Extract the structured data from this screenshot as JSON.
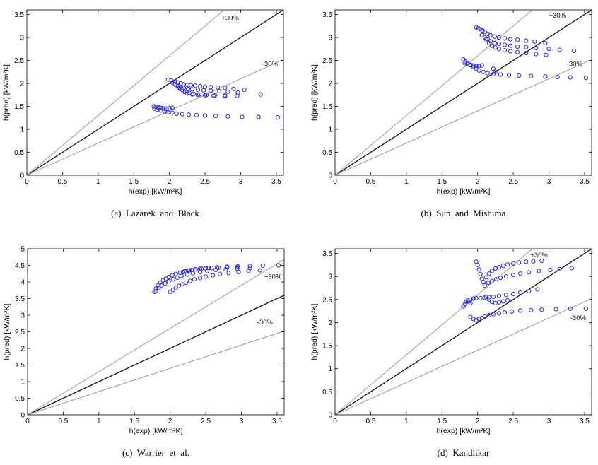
{
  "chart_data": [
    {
      "type": "scatter",
      "caption": "(a)  Lazarek  and  Black",
      "xlabel": "h(exp) [kW/m²K]",
      "ylabel": "h(pred) [kW/m²K]",
      "xlim": [
        0,
        3.6
      ],
      "ylim": [
        0,
        3.6
      ],
      "xticks": [
        0,
        0.5,
        1,
        1.5,
        2,
        2.5,
        3,
        3.5
      ],
      "yticks": [
        0,
        0.5,
        1,
        1.5,
        2,
        2.5,
        3,
        3.5
      ],
      "grid": false,
      "marker_color": "#2a2ad8",
      "annotations": [
        "+30%",
        "-30%"
      ],
      "reference_lines": [
        {
          "slope": 1.0
        },
        {
          "slope": 1.3
        },
        {
          "slope": 0.7
        }
      ],
      "series": [
        {
          "x": [
            1.98,
            2.03,
            2.08,
            2.12,
            2.16,
            2.2,
            2.25,
            2.3,
            2.36,
            2.43,
            2.5,
            2.58,
            2.68,
            2.78,
            2.9,
            3.05,
            3.28
          ],
          "y": [
            2.08,
            2.06,
            2.04,
            2.02,
            2.0,
            1.98,
            1.97,
            1.96,
            1.95,
            1.94,
            1.93,
            1.92,
            1.91,
            1.9,
            1.88,
            1.86,
            1.76
          ]
        },
        {
          "x": [
            2.04,
            2.08,
            2.12,
            2.16,
            2.2,
            2.26,
            2.32,
            2.4,
            2.48,
            2.58,
            2.7,
            2.82,
            2.96
          ],
          "y": [
            2.02,
            1.98,
            1.95,
            1.92,
            1.9,
            1.88,
            1.87,
            1.86,
            1.85,
            1.84,
            1.83,
            1.82,
            1.8
          ]
        },
        {
          "x": [
            2.1,
            2.14,
            2.18,
            2.22,
            2.28,
            2.34,
            2.42,
            2.52,
            2.64,
            2.78,
            2.95
          ],
          "y": [
            1.96,
            1.91,
            1.86,
            1.82,
            1.79,
            1.77,
            1.76,
            1.75,
            1.74,
            1.74,
            1.73
          ]
        },
        {
          "x": [
            2.15,
            2.2,
            2.25,
            2.32,
            2.4,
            2.5,
            2.62,
            2.78
          ],
          "y": [
            1.88,
            1.82,
            1.78,
            1.76,
            1.75,
            1.74,
            1.73,
            1.72
          ]
        },
        {
          "x": [
            1.78,
            1.81,
            1.84,
            1.87,
            1.9,
            1.93,
            1.96,
            2.0,
            2.04
          ],
          "y": [
            1.5,
            1.49,
            1.48,
            1.47,
            1.46,
            1.45,
            1.45,
            1.46,
            1.47
          ]
        },
        {
          "x": [
            1.79,
            1.83,
            1.88,
            1.93,
            1.98,
            2.04,
            2.1,
            2.18,
            2.27,
            2.38,
            2.5,
            2.65,
            2.82,
            3.02,
            3.25,
            3.52
          ],
          "y": [
            1.45,
            1.43,
            1.41,
            1.39,
            1.37,
            1.36,
            1.34,
            1.33,
            1.32,
            1.31,
            1.3,
            1.29,
            1.28,
            1.27,
            1.27,
            1.26
          ]
        }
      ]
    },
    {
      "type": "scatter",
      "caption": "(b)  Sun  and  Mishima",
      "xlabel": "h(exp) [kW/m²K]",
      "ylabel": "h(pred) [kW/m²K]",
      "xlim": [
        0,
        3.6
      ],
      "ylim": [
        0,
        3.6
      ],
      "xticks": [
        0,
        0.5,
        1,
        1.5,
        2,
        2.5,
        3,
        3.5
      ],
      "yticks": [
        0,
        0.5,
        1,
        1.5,
        2,
        2.5,
        3,
        3.5
      ],
      "grid": false,
      "marker_color": "#2a2ad8",
      "annotations": [
        "+30%",
        "-30%"
      ],
      "reference_lines": [
        {
          "slope": 1.0
        },
        {
          "slope": 1.3
        },
        {
          "slope": 0.7
        }
      ],
      "series": [
        {
          "x": [
            1.98,
            2.01,
            2.04,
            2.07,
            2.1,
            2.14,
            2.18,
            2.24,
            2.3,
            2.38,
            2.46,
            2.56,
            2.68,
            2.8,
            2.95
          ],
          "y": [
            3.22,
            3.2,
            3.18,
            3.15,
            3.12,
            3.08,
            3.05,
            3.02,
            3.0,
            2.98,
            2.96,
            2.95,
            2.93,
            2.91,
            2.88
          ]
        },
        {
          "x": [
            2.06,
            2.1,
            2.14,
            2.18,
            2.24,
            2.3,
            2.38,
            2.46,
            2.56,
            2.68,
            2.82,
            3.0,
            3.15,
            3.35
          ],
          "y": [
            3.05,
            3.0,
            2.96,
            2.92,
            2.88,
            2.86,
            2.84,
            2.82,
            2.8,
            2.79,
            2.77,
            2.75,
            2.73,
            2.71
          ]
        },
        {
          "x": [
            2.12,
            2.16,
            2.2,
            2.25,
            2.3,
            2.38,
            2.46,
            2.56,
            2.68,
            2.82,
            2.96
          ],
          "y": [
            2.96,
            2.88,
            2.82,
            2.78,
            2.75,
            2.72,
            2.7,
            2.68,
            2.66,
            2.64,
            2.62
          ]
        },
        {
          "x": [
            1.8,
            1.83,
            1.86,
            1.9,
            1.94,
            1.98,
            2.02,
            2.08,
            2.14,
            2.22,
            2.32,
            2.44,
            2.58,
            2.75,
            2.95,
            3.12,
            3.3,
            3.52
          ],
          "y": [
            2.52,
            2.48,
            2.44,
            2.4,
            2.36,
            2.32,
            2.28,
            2.25,
            2.22,
            2.2,
            2.19,
            2.18,
            2.17,
            2.16,
            2.15,
            2.14,
            2.13,
            2.12
          ]
        },
        {
          "x": [
            1.82,
            1.86,
            1.9,
            1.94,
            1.98,
            2.02,
            2.06
          ],
          "y": [
            2.44,
            2.42,
            2.4,
            2.39,
            2.38,
            2.38,
            2.39
          ]
        },
        {
          "x": [
            2.22,
            2.25
          ],
          "y": [
            2.32,
            2.25
          ]
        }
      ]
    },
    {
      "type": "scatter",
      "caption": "(c)  Warrier  et  al.",
      "xlabel": "h(exp) [kW/m²K]",
      "ylabel": "h(pred) [kW/m²K]",
      "xlim": [
        0,
        3.6
      ],
      "ylim": [
        0,
        5
      ],
      "xticks": [
        0,
        0.5,
        1,
        1.5,
        2,
        2.5,
        3,
        3.5
      ],
      "yticks": [
        0,
        0.5,
        1,
        1.5,
        2,
        2.5,
        3,
        3.5,
        4,
        4.5,
        5
      ],
      "grid": false,
      "marker_color": "#2a2ad8",
      "annotations": [
        "+30%",
        "-30%"
      ],
      "reference_lines": [
        {
          "slope": 1.0
        },
        {
          "slope": 1.3
        },
        {
          "slope": 0.7
        }
      ],
      "series": [
        {
          "x": [
            1.78,
            1.8,
            1.83,
            1.86,
            1.9,
            1.94,
            1.98,
            2.03,
            2.08,
            2.14,
            2.2,
            2.27,
            2.35,
            2.44,
            2.54,
            2.66,
            2.8,
            2.95,
            3.12,
            3.3,
            3.52
          ],
          "y": [
            3.7,
            3.8,
            3.9,
            3.98,
            4.05,
            4.1,
            4.15,
            4.2,
            4.24,
            4.28,
            4.32,
            4.35,
            4.38,
            4.4,
            4.42,
            4.44,
            4.46,
            4.47,
            4.48,
            4.49,
            4.5
          ]
        },
        {
          "x": [
            1.8,
            1.84,
            1.88,
            1.93,
            1.98,
            2.04,
            2.1,
            2.16,
            2.24,
            2.32,
            2.42,
            2.52,
            2.64,
            2.78,
            2.94,
            3.12
          ],
          "y": [
            3.72,
            3.82,
            3.9,
            3.96,
            4.02,
            4.08,
            4.13,
            4.18,
            4.22,
            4.26,
            4.3,
            4.33,
            4.36,
            4.38,
            4.4,
            4.42
          ]
        },
        {
          "x": [
            2.0,
            2.04,
            2.08,
            2.12,
            2.17,
            2.22,
            2.28,
            2.34,
            2.42,
            2.5,
            2.6,
            2.7,
            2.82,
            2.96,
            3.1,
            3.26
          ],
          "y": [
            3.7,
            3.76,
            3.82,
            3.88,
            3.93,
            3.98,
            4.03,
            4.08,
            4.12,
            4.16,
            4.2,
            4.24,
            4.27,
            4.3,
            4.33,
            4.35
          ]
        },
        {
          "x": [
            2.18,
            2.22,
            2.26,
            2.3,
            2.36,
            2.42,
            2.5,
            2.58,
            2.68,
            2.8,
            2.94
          ],
          "y": [
            4.3,
            4.32,
            4.34,
            4.36,
            4.38,
            4.4,
            4.41,
            4.42,
            4.43,
            4.44,
            4.45
          ]
        }
      ]
    },
    {
      "type": "scatter",
      "caption": "(d)  Kandlikar",
      "xlabel": "h(exp) [kW/m²K]",
      "ylabel": "h(pred) [kW/m²K]",
      "xlim": [
        0,
        3.6
      ],
      "ylim": [
        0,
        3.6
      ],
      "xticks": [
        0,
        0.5,
        1,
        1.5,
        2,
        2.5,
        3,
        3.5
      ],
      "yticks": [
        0,
        0.5,
        1,
        1.5,
        2,
        2.5,
        3,
        3.5
      ],
      "grid": false,
      "marker_color": "#2a2ad8",
      "annotations": [
        "+30%",
        "-30%"
      ],
      "reference_lines": [
        {
          "slope": 1.0
        },
        {
          "slope": 1.3
        },
        {
          "slope": 0.7
        }
      ],
      "series": [
        {
          "x": [
            1.98,
            2.0,
            2.02,
            2.04,
            2.06,
            2.08
          ],
          "y": [
            3.32,
            3.25,
            3.15,
            3.05,
            2.95,
            2.88
          ]
        },
        {
          "x": [
            2.12,
            2.16,
            2.2,
            2.25,
            2.3,
            2.36,
            2.42,
            2.5,
            2.58,
            2.68,
            2.78,
            2.9
          ],
          "y": [
            2.98,
            3.06,
            3.12,
            3.17,
            3.2,
            3.23,
            3.26,
            3.28,
            3.3,
            3.32,
            3.33,
            3.34
          ]
        },
        {
          "x": [
            2.1,
            2.15,
            2.2,
            2.26,
            2.32,
            2.4,
            2.5,
            2.6,
            2.72,
            2.86,
            3.02,
            3.15,
            3.32
          ],
          "y": [
            2.8,
            2.86,
            2.9,
            2.94,
            2.97,
            3.0,
            3.03,
            3.06,
            3.09,
            3.12,
            3.14,
            3.16,
            3.18
          ]
        },
        {
          "x": [
            1.8,
            1.82,
            1.84,
            1.86,
            1.88,
            1.9
          ],
          "y": [
            2.35,
            2.4,
            2.45,
            2.48,
            2.46,
            2.42
          ]
        },
        {
          "x": [
            1.9,
            1.94,
            1.98,
            2.04,
            2.1,
            2.16,
            2.22,
            2.3,
            2.4,
            2.5,
            2.6,
            2.72,
            2.84
          ],
          "y": [
            2.5,
            2.52,
            2.53,
            2.53,
            2.54,
            2.55,
            2.56,
            2.58,
            2.6,
            2.62,
            2.65,
            2.68,
            2.72
          ]
        },
        {
          "x": [
            2.12,
            2.16,
            2.2,
            2.25,
            2.3,
            2.36,
            2.42
          ],
          "y": [
            2.56,
            2.5,
            2.45,
            2.42,
            2.44,
            2.46,
            2.48
          ]
        },
        {
          "x": [
            1.9,
            1.94,
            1.98,
            2.02,
            2.06,
            2.1,
            2.16,
            2.22,
            2.3,
            2.38,
            2.48,
            2.6,
            2.75,
            2.9,
            3.1,
            3.3,
            3.52
          ],
          "y": [
            2.12,
            2.08,
            2.05,
            2.08,
            2.1,
            2.13,
            2.16,
            2.18,
            2.2,
            2.22,
            2.24,
            2.26,
            2.27,
            2.28,
            2.29,
            2.3,
            2.3
          ]
        }
      ]
    }
  ]
}
